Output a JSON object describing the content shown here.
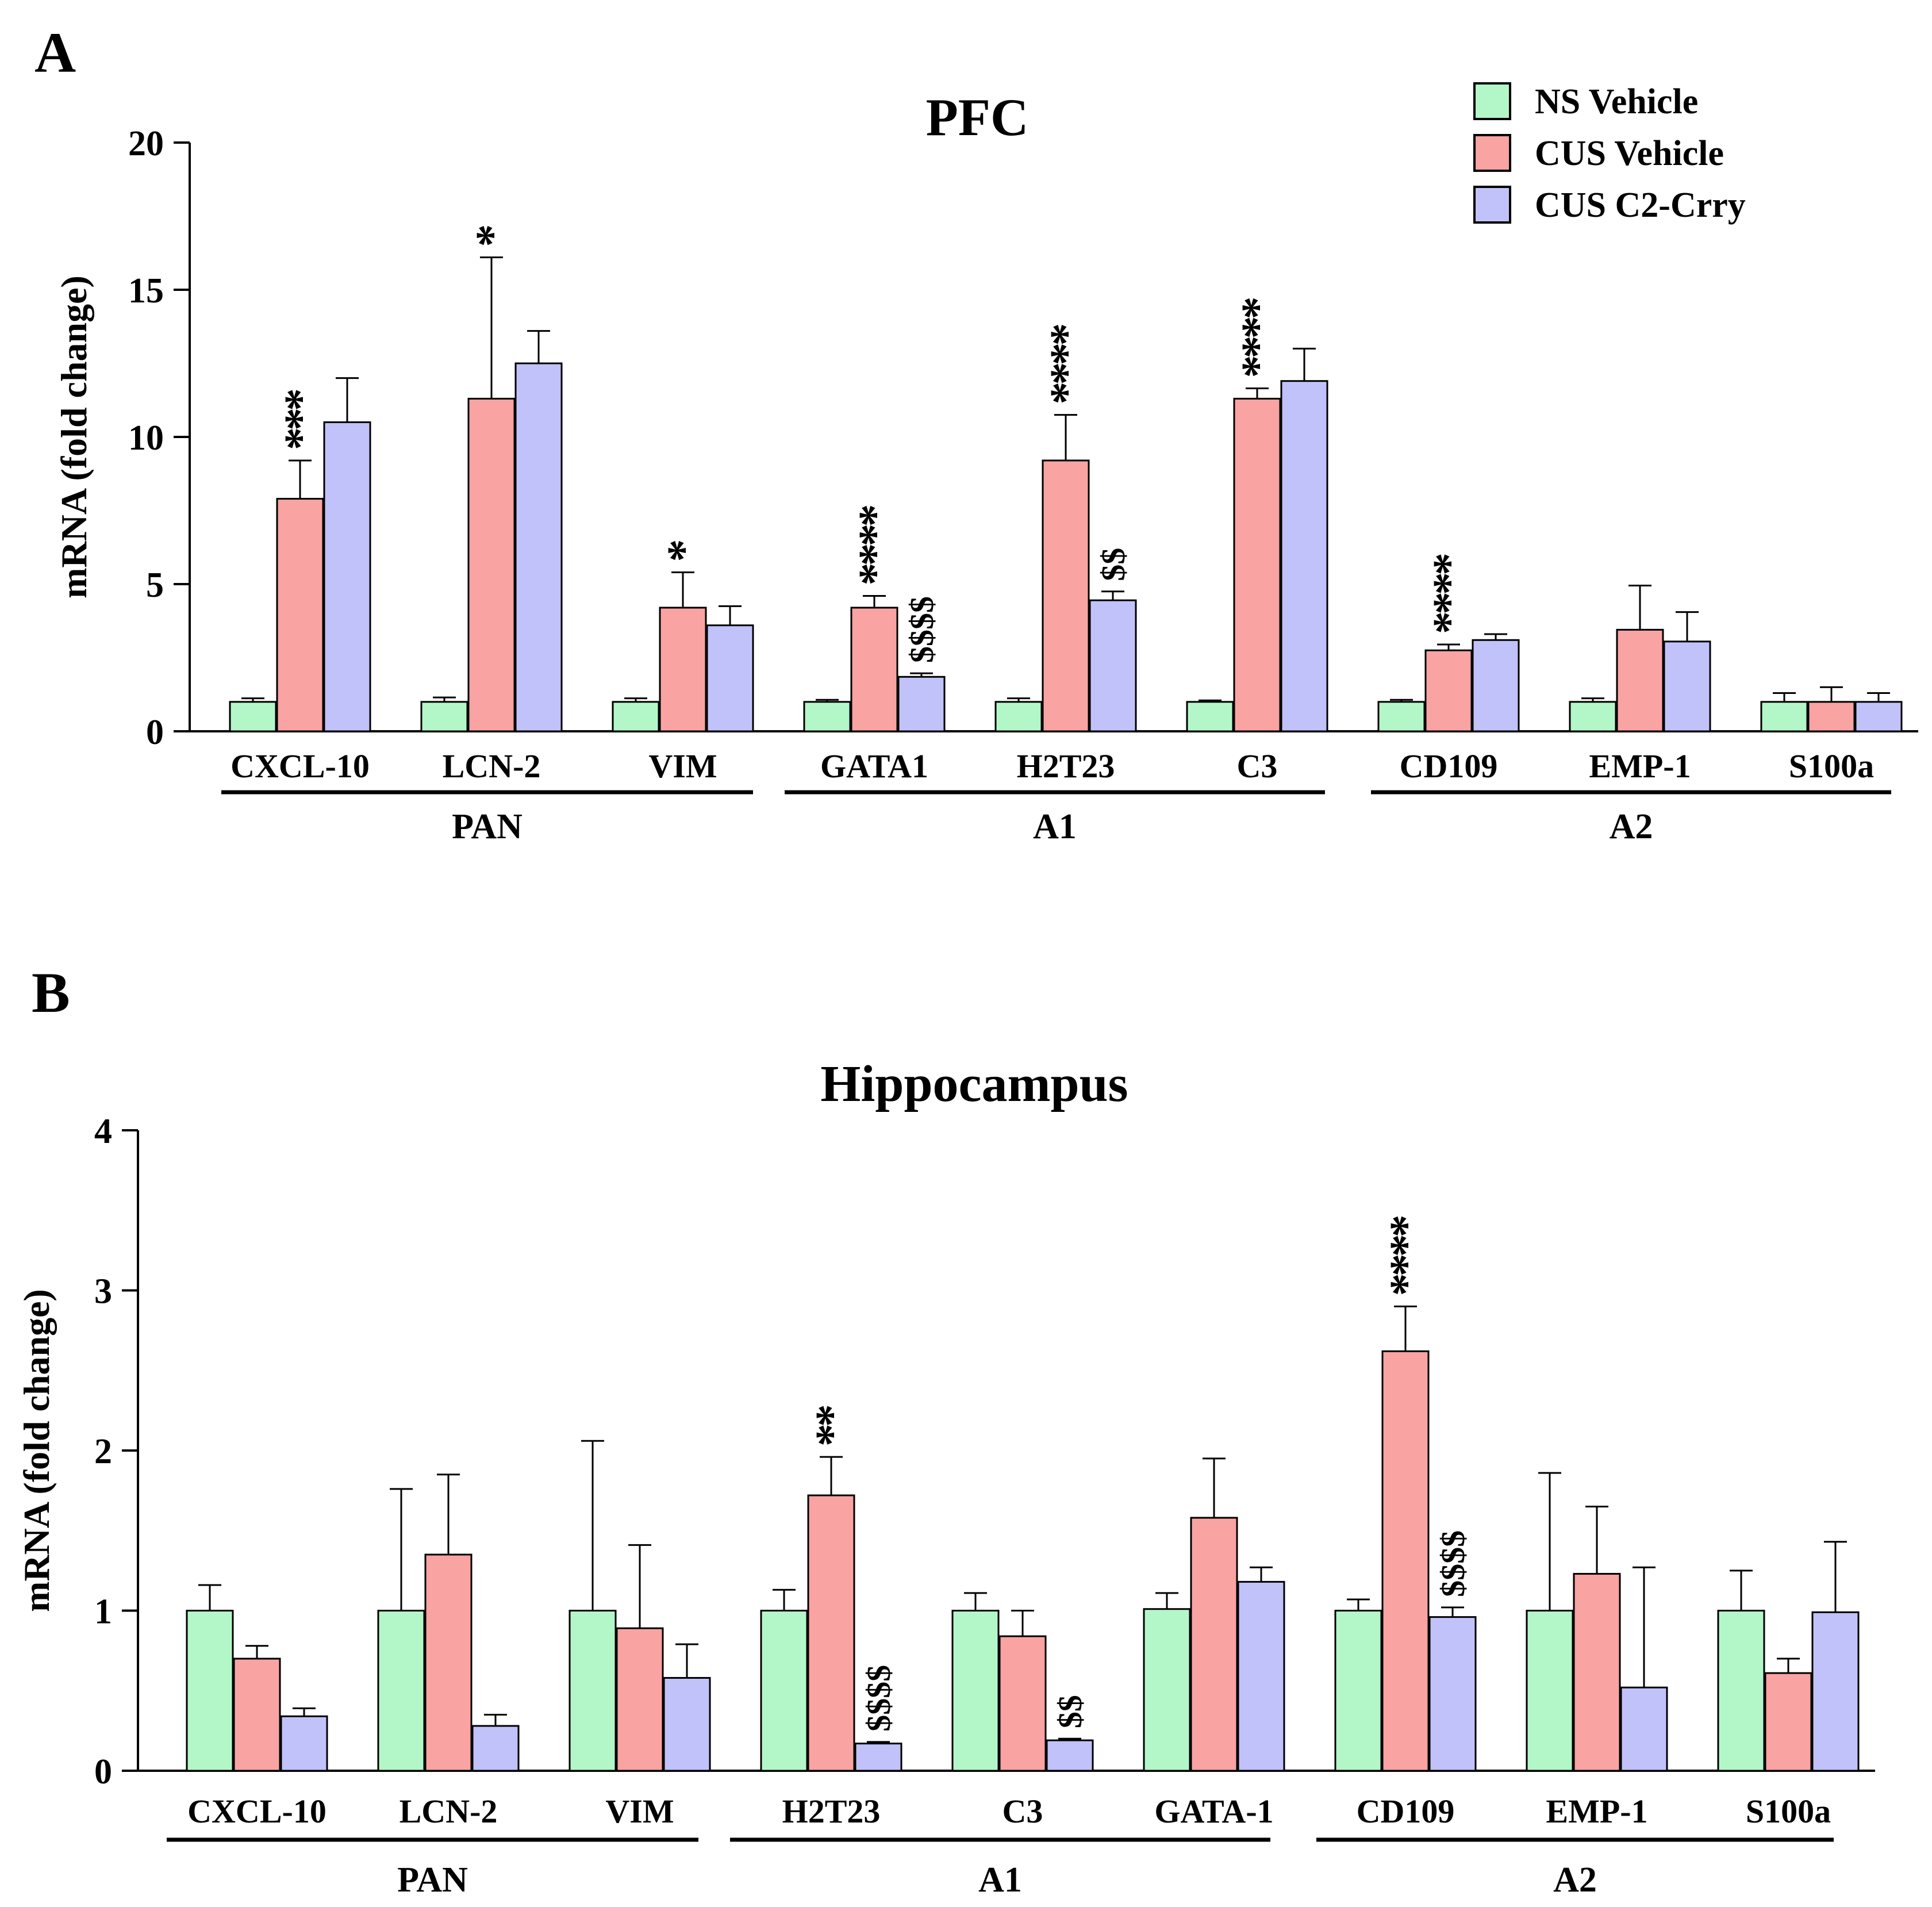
{
  "legend": [
    {
      "label": "NS Vehicle",
      "color": "#b3f7c9"
    },
    {
      "label": "CUS Vehicle",
      "color": "#f9a3a3"
    },
    {
      "label": "CUS C2-Crry",
      "color": "#c2c2fb"
    }
  ],
  "chart_data": [
    {
      "panel": "A",
      "type": "bar",
      "title": "PFC",
      "ylabel": "mRNA (fold change)",
      "xlabel": "",
      "ylim": [
        0,
        20
      ],
      "yticks": [
        "0",
        "5",
        "10",
        "15",
        "20"
      ],
      "categories": [
        "CXCL-10",
        "LCN-2",
        "VIM",
        "GATA1",
        "H2T23",
        "C3",
        "CD109",
        "EMP-1",
        "S100a"
      ],
      "groups": [
        {
          "label": "PAN",
          "categories": [
            "CXCL-10",
            "LCN-2",
            "VIM"
          ]
        },
        {
          "label": "A1",
          "categories": [
            "GATA1",
            "H2T23",
            "C3"
          ]
        },
        {
          "label": "A2",
          "categories": [
            "CD109",
            "EMP-1",
            "S100a"
          ]
        }
      ],
      "series": [
        {
          "name": "NS Vehicle",
          "values": [
            1.0,
            1.0,
            1.0,
            1.0,
            1.0,
            1.0,
            1.0,
            1.0,
            1.0
          ],
          "errors": [
            0.12,
            0.15,
            0.12,
            0.07,
            0.12,
            0.05,
            0.07,
            0.12,
            0.3
          ]
        },
        {
          "name": "CUS Vehicle",
          "values": [
            7.9,
            11.3,
            4.2,
            4.2,
            9.2,
            11.3,
            2.75,
            3.45,
            1.0
          ],
          "errors": [
            1.3,
            4.8,
            1.2,
            0.4,
            1.55,
            0.35,
            0.2,
            1.5,
            0.5
          ]
        },
        {
          "name": "CUS C2-Crry",
          "values": [
            10.5,
            12.5,
            3.6,
            1.85,
            4.45,
            11.9,
            3.1,
            3.05,
            1.0
          ],
          "errors": [
            1.5,
            1.1,
            0.65,
            0.12,
            0.3,
            1.1,
            0.2,
            1.0,
            0.3
          ]
        }
      ],
      "annotations": [
        {
          "category": "CXCL-10",
          "series": "CUS Vehicle",
          "text": "***",
          "style": "star-stack"
        },
        {
          "category": "LCN-2",
          "series": "CUS Vehicle",
          "text": "*",
          "style": "star-stack"
        },
        {
          "category": "VIM",
          "series": "CUS Vehicle",
          "text": "*",
          "style": "star-stack"
        },
        {
          "category": "GATA1",
          "series": "CUS Vehicle",
          "text": "****",
          "style": "star-stack"
        },
        {
          "category": "GATA1",
          "series": "CUS C2-Crry",
          "text": "$$$$",
          "style": "rotated"
        },
        {
          "category": "H2T23",
          "series": "CUS Vehicle",
          "text": "****",
          "style": "star-stack"
        },
        {
          "category": "H2T23",
          "series": "CUS C2-Crry",
          "text": "$$",
          "style": "rotated"
        },
        {
          "category": "C3",
          "series": "CUS Vehicle",
          "text": "****",
          "style": "star-stack"
        },
        {
          "category": "CD109",
          "series": "CUS Vehicle",
          "text": "****",
          "style": "star-stack"
        }
      ]
    },
    {
      "panel": "B",
      "type": "bar",
      "title": "Hippocampus",
      "ylabel": "mRNA (fold change)",
      "xlabel": "",
      "ylim": [
        0,
        4
      ],
      "yticks": [
        "0",
        "1",
        "2",
        "3",
        "4"
      ],
      "categories": [
        "CXCL-10",
        "LCN-2",
        "VIM",
        "H2T23",
        "C3",
        "GATA-1",
        "CD109",
        "EMP-1",
        "S100a"
      ],
      "groups": [
        {
          "label": "PAN",
          "categories": [
            "CXCL-10",
            "LCN-2",
            "VIM"
          ]
        },
        {
          "label": "A1",
          "categories": [
            "H2T23",
            "C3",
            "GATA-1"
          ]
        },
        {
          "label": "A2",
          "categories": [
            "CD109",
            "EMP-1",
            "S100a"
          ]
        }
      ],
      "series": [
        {
          "name": "NS Vehicle",
          "values": [
            1.0,
            1.0,
            1.0,
            1.0,
            1.0,
            1.01,
            1.0,
            1.0,
            1.0
          ],
          "errors": [
            0.16,
            0.76,
            1.06,
            0.13,
            0.11,
            0.1,
            0.07,
            0.86,
            0.25
          ]
        },
        {
          "name": "CUS Vehicle",
          "values": [
            0.7,
            1.35,
            0.89,
            1.72,
            0.84,
            1.58,
            2.62,
            1.23,
            0.61
          ],
          "errors": [
            0.08,
            0.5,
            0.52,
            0.24,
            0.16,
            0.37,
            0.28,
            0.42,
            0.09
          ]
        },
        {
          "name": "CUS C2-Crry",
          "values": [
            0.34,
            0.28,
            0.58,
            0.17,
            0.19,
            1.18,
            0.96,
            0.52,
            0.99
          ],
          "errors": [
            0.05,
            0.07,
            0.21,
            0.01,
            0.01,
            0.09,
            0.06,
            0.75,
            0.44
          ]
        }
      ],
      "annotations": [
        {
          "category": "H2T23",
          "series": "CUS Vehicle",
          "text": "**",
          "style": "star-stack"
        },
        {
          "category": "H2T23",
          "series": "CUS C2-Crry",
          "text": "$$$$",
          "style": "rotated"
        },
        {
          "category": "C3",
          "series": "CUS C2-Crry",
          "text": "$$",
          "style": "rotated"
        },
        {
          "category": "CD109",
          "series": "CUS Vehicle",
          "text": "****",
          "style": "star-stack"
        },
        {
          "category": "CD109",
          "series": "CUS C2-Crry",
          "text": "$$$$",
          "style": "rotated"
        }
      ]
    }
  ]
}
